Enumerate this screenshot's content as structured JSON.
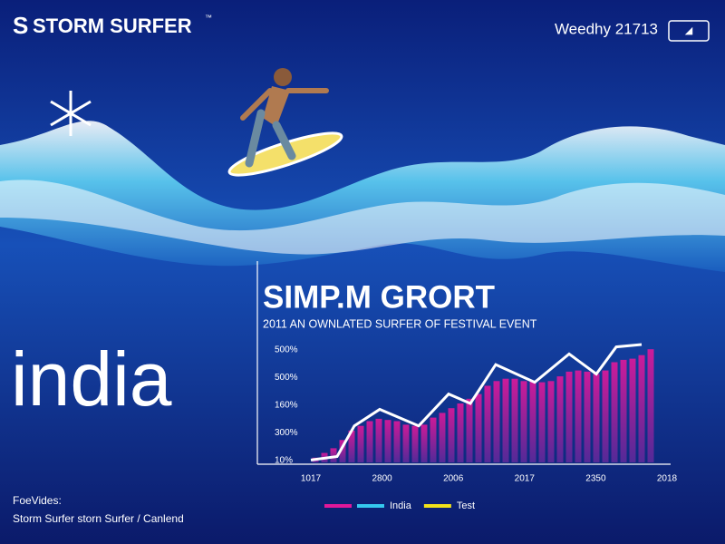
{
  "header": {
    "brand": "STORM SURFER",
    "trademark": "™",
    "badge": "Weedhy 21713"
  },
  "hero": {
    "title": "india"
  },
  "footer": {
    "label": "FoeVides:",
    "credit": "Storm Surfer storn Surfer / Canlend"
  },
  "chart_data": {
    "type": "bar",
    "title": "SIMP.M GRORT",
    "subtitle": "2011 AN OWNLATED SURFER OF FESTIVAL EVENT",
    "y_axis_labels": [
      "500%",
      "500%",
      "160%",
      "300%",
      "10%"
    ],
    "x_axis_labels": [
      "1017",
      "2800",
      "2006",
      "2017",
      "2350",
      "2018"
    ],
    "ylim": [
      0,
      100
    ],
    "xlim": [
      -1,
      38
    ],
    "bar_color": "#e0189a",
    "bar_base_color": "#5a2a9a",
    "values": [
      4,
      8,
      12,
      19,
      27,
      31,
      35,
      37,
      36,
      35,
      32,
      31,
      32,
      38,
      42,
      46,
      50,
      54,
      58,
      65,
      69,
      71,
      71,
      69,
      69,
      68,
      69,
      73,
      77,
      78,
      77,
      75,
      78,
      85,
      87,
      88,
      91,
      96
    ],
    "line": {
      "color": "#ffffff",
      "x": [
        -0.5,
        2.4,
        4.3,
        7.1,
        11.4,
        14.7,
        17.1,
        19.9,
        24.2,
        28,
        31,
        33.2,
        36
      ],
      "values": [
        2,
        5,
        31,
        45,
        31,
        58,
        50,
        83,
        68,
        92,
        75,
        98,
        100
      ]
    },
    "legend": [
      {
        "color": "#e0189a"
      },
      {
        "color": "#35c8ee",
        "label": "India"
      },
      {
        "color": "#f2e21a",
        "label": "Test"
      }
    ]
  }
}
